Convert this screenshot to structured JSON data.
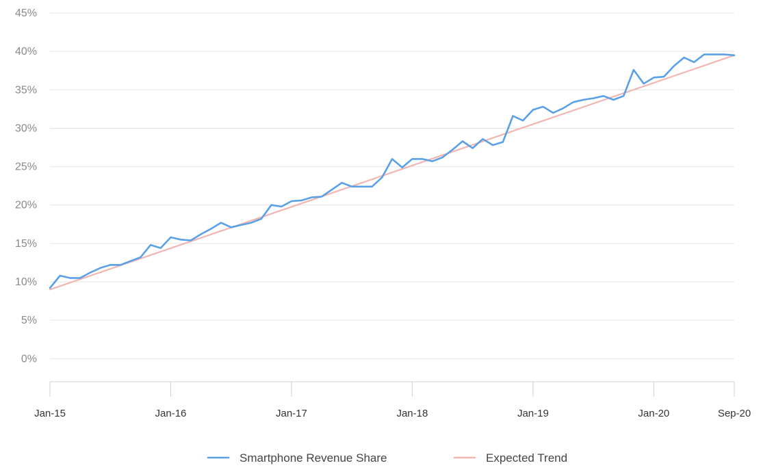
{
  "chart_data": {
    "type": "line",
    "title": "",
    "xlabel": "",
    "ylabel": "",
    "x_range": [
      "2015-01",
      "2020-09"
    ],
    "ylim": [
      -3,
      45
    ],
    "y_ticks": [
      0,
      5,
      10,
      15,
      20,
      25,
      30,
      35,
      40,
      45
    ],
    "y_tick_labels": [
      "0%",
      "5%",
      "10%",
      "15%",
      "20%",
      "25%",
      "30%",
      "35%",
      "40%",
      "45%"
    ],
    "x_ticks": [
      "2015-01",
      "2016-01",
      "2017-01",
      "2018-01",
      "2019-01",
      "2020-01",
      "2020-09"
    ],
    "x_tick_labels": [
      "Jan-15",
      "Jan-16",
      "Jan-17",
      "Jan-18",
      "Jan-19",
      "Jan-20",
      "Sep-20"
    ],
    "grid": "horizontal",
    "legend_position": "bottom-center",
    "series": [
      {
        "name": "Smartphone Revenue Share",
        "color": "#5aa0e8",
        "x": [
          "2015-01",
          "2015-02",
          "2015-03",
          "2015-04",
          "2015-05",
          "2015-06",
          "2015-07",
          "2015-08",
          "2015-09",
          "2015-10",
          "2015-11",
          "2015-12",
          "2016-01",
          "2016-02",
          "2016-03",
          "2016-04",
          "2016-05",
          "2016-06",
          "2016-07",
          "2016-08",
          "2016-09",
          "2016-10",
          "2016-11",
          "2016-12",
          "2017-01",
          "2017-02",
          "2017-03",
          "2017-04",
          "2017-05",
          "2017-06",
          "2017-07",
          "2017-08",
          "2017-09",
          "2017-10",
          "2017-11",
          "2017-12",
          "2018-01",
          "2018-02",
          "2018-03",
          "2018-04",
          "2018-05",
          "2018-06",
          "2018-07",
          "2018-08",
          "2018-09",
          "2018-10",
          "2018-11",
          "2018-12",
          "2019-01",
          "2019-02",
          "2019-03",
          "2019-04",
          "2019-05",
          "2019-06",
          "2019-07",
          "2019-08",
          "2019-09",
          "2019-10",
          "2019-11",
          "2019-12",
          "2020-01",
          "2020-02",
          "2020-03",
          "2020-04",
          "2020-05",
          "2020-06",
          "2020-07",
          "2020-08",
          "2020-09"
        ],
        "values": [
          9.2,
          10.8,
          10.5,
          10.5,
          11.2,
          11.8,
          12.2,
          12.2,
          12.7,
          13.2,
          14.8,
          14.4,
          15.8,
          15.5,
          15.4,
          16.2,
          16.9,
          17.7,
          17.1,
          17.4,
          17.7,
          18.2,
          20.0,
          19.8,
          20.5,
          20.6,
          21.0,
          21.1,
          22.0,
          22.9,
          22.4,
          22.4,
          22.4,
          23.6,
          26.0,
          24.9,
          26.0,
          26.0,
          25.7,
          26.2,
          27.2,
          28.3,
          27.4,
          28.6,
          27.8,
          28.2,
          31.6,
          31.0,
          32.4,
          32.8,
          32.0,
          32.6,
          33.4,
          33.7,
          33.9,
          34.2,
          33.7,
          34.2,
          37.6,
          35.8,
          36.6,
          36.7,
          38.1,
          39.2,
          38.6,
          39.6,
          39.6,
          39.6,
          39.5
        ]
      },
      {
        "name": "Expected Trend",
        "color": "#f2b6b0",
        "x": [
          "2015-01",
          "2020-09"
        ],
        "values": [
          9.0,
          39.5
        ]
      }
    ]
  }
}
